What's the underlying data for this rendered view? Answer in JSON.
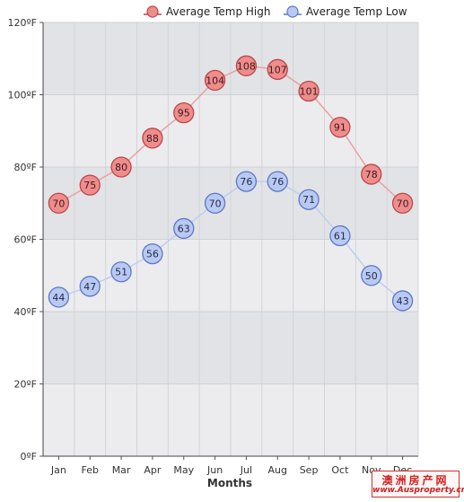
{
  "chart_data": {
    "type": "line",
    "categories": [
      "Jan",
      "Feb",
      "Mar",
      "Apr",
      "May",
      "Jun",
      "Jul",
      "Aug",
      "Sep",
      "Oct",
      "Nov",
      "Dec"
    ],
    "series": [
      {
        "name": "Average Temp High",
        "values": [
          70,
          75,
          80,
          88,
          95,
          104,
          108,
          107,
          101,
          91,
          78,
          70
        ],
        "color": "#e06666"
      },
      {
        "name": "Average Temp Low",
        "values": [
          44,
          47,
          51,
          56,
          63,
          70,
          76,
          76,
          71,
          61,
          50,
          43
        ],
        "color": "#6f8fd6"
      }
    ],
    "xlabel": "Months",
    "ylabel": "",
    "ylim": [
      0,
      120
    ],
    "yticks": [
      0,
      20,
      40,
      60,
      80,
      100,
      120
    ],
    "ytick_labels": [
      "0ºF",
      "20ºF",
      "40ºF",
      "60ºF",
      "80ºF",
      "100ºF",
      "120ºF"
    ],
    "grid": true,
    "legend_position": "top-right"
  },
  "watermark": {
    "text_cn": "澳洲房产网",
    "url": "www.Ausproperty.cn"
  }
}
